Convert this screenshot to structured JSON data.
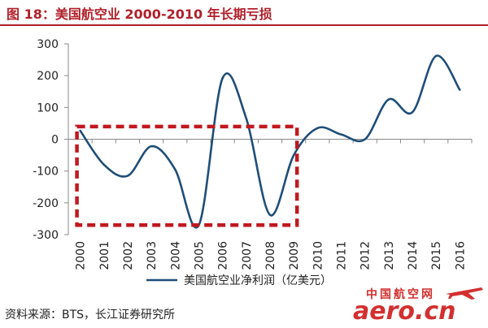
{
  "header": {
    "title": "图 18：美国航空业 2000-2010 年长期亏损"
  },
  "colors": {
    "accent": "#b0202a",
    "line": "#1f4e79",
    "highlight_box": "#c0191f"
  },
  "chart_data": {
    "type": "line",
    "categories": [
      "2000",
      "2001",
      "2002",
      "2003",
      "2004",
      "2005",
      "2006",
      "2007",
      "2008",
      "2009",
      "2010",
      "2011",
      "2012",
      "2013",
      "2014",
      "2015",
      "2016"
    ],
    "series": [
      {
        "name": "美国航空业净利润（亿美元）",
        "values": [
          27,
          -80,
          -115,
          -22,
          -95,
          -270,
          192,
          65,
          -238,
          -50,
          35,
          15,
          0,
          125,
          85,
          262,
          155
        ]
      }
    ],
    "ylim": [
      -300,
      300
    ],
    "yticks": [
      300,
      200,
      100,
      0,
      -100,
      -200,
      -300
    ],
    "ytick_labels": [
      "300",
      "200",
      "100",
      "0",
      "-100",
      "-200",
      "-300"
    ],
    "xlabel": "",
    "ylabel": "",
    "grid": false,
    "legend_position": "bottom",
    "annotation": {
      "type": "dashed-box",
      "x_from": "2000",
      "x_to": "2009",
      "y_from": 40,
      "y_to": -270
    }
  },
  "source": "资料来源：BTS，长江证券研究所",
  "watermark": {
    "top": "中国航空网",
    "bottom": "aero.cn"
  }
}
